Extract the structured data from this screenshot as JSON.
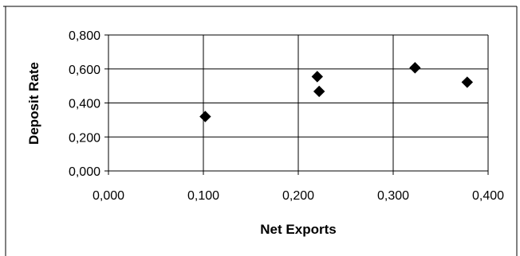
{
  "chart_data": {
    "type": "scatter",
    "title": "",
    "xlabel": "Net Exports",
    "ylabel": "Deposit Rate",
    "xlim": [
      0,
      0.4
    ],
    "ylim": [
      0,
      0.8
    ],
    "x_ticks": [
      "0,000",
      "0,100",
      "0,200",
      "0,300",
      "0,400"
    ],
    "y_ticks": [
      "0,000",
      "0,200",
      "0,400",
      "0,600",
      "0,800"
    ],
    "grid": "vertical and horizontal major gridlines",
    "marker": "diamond",
    "marker_color": "#000000",
    "points": [
      {
        "x": 0.102,
        "y": 0.32
      },
      {
        "x": 0.22,
        "y": 0.555
      },
      {
        "x": 0.222,
        "y": 0.468
      },
      {
        "x": 0.323,
        "y": 0.607
      },
      {
        "x": 0.378,
        "y": 0.522
      }
    ]
  }
}
